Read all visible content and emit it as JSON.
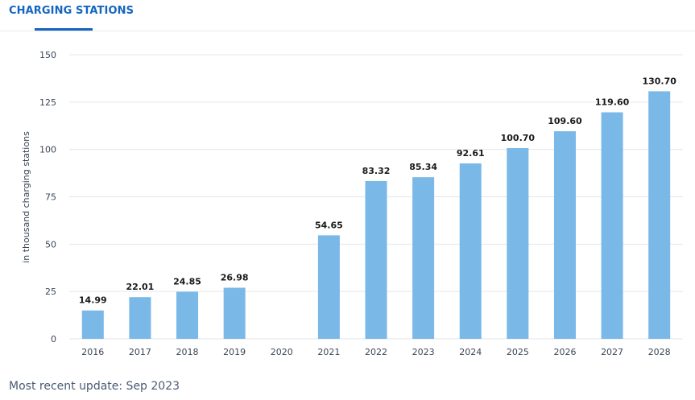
{
  "tab": {
    "label": "CHARGING STATIONS"
  },
  "footer": {
    "update_text": "Most recent update: Sep 2023"
  },
  "colors": {
    "bar": "#7ab8e8",
    "grid": "#e3e6ea",
    "axis_text": "#3c4658",
    "label_text": "#1a1a1a",
    "accent": "#1565c0"
  },
  "chart_data": {
    "type": "bar",
    "title": "",
    "xlabel": "",
    "ylabel": "in thousand charging stations",
    "ylim": [
      0,
      150
    ],
    "yticks": [
      0,
      25,
      50,
      75,
      100,
      125,
      150
    ],
    "categories": [
      "2016",
      "2017",
      "2018",
      "2019",
      "2020",
      "2021",
      "2022",
      "2023",
      "2024",
      "2025",
      "2026",
      "2027",
      "2028"
    ],
    "values": [
      14.99,
      22.01,
      24.85,
      26.98,
      null,
      54.65,
      83.32,
      85.34,
      92.61,
      100.7,
      109.6,
      119.6,
      130.7
    ],
    "value_labels": [
      "14.99",
      "22.01",
      "24.85",
      "26.98",
      "",
      "54.65",
      "83.32",
      "85.34",
      "92.61",
      "100.70",
      "109.60",
      "119.60",
      "130.70"
    ],
    "grid": true
  }
}
